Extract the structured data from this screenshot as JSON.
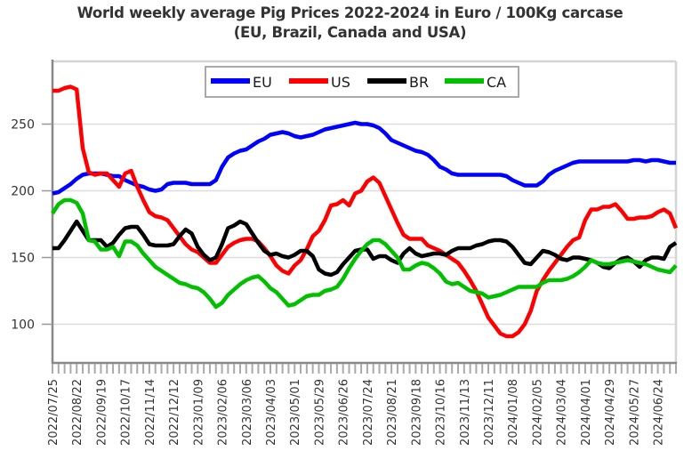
{
  "chart_data": {
    "type": "line",
    "title": "World weekly average Pig Prices 2022-2024 in Euro / 100Kg carcase",
    "subtitle": "(EU, Brazil, Canada and USA)",
    "xlabel": "",
    "ylabel": "",
    "ylim": [
      71,
      297
    ],
    "yticks": [
      100,
      150,
      200,
      250
    ],
    "ytick_labels": [
      "100",
      "150",
      "200",
      "250"
    ],
    "grid": "horizontal",
    "legend_position": "top-center",
    "x": [
      "2022/07/25",
      "2022/08/01",
      "2022/08/08",
      "2022/08/15",
      "2022/08/22",
      "2022/08/29",
      "2022/09/05",
      "2022/09/12",
      "2022/09/19",
      "2022/09/26",
      "2022/10/03",
      "2022/10/10",
      "2022/10/17",
      "2022/10/24",
      "2022/10/31",
      "2022/11/07",
      "2022/11/14",
      "2022/11/21",
      "2022/11/28",
      "2022/12/05",
      "2022/12/12",
      "2022/12/19",
      "2022/12/26",
      "2023/01/02",
      "2023/01/09",
      "2023/01/16",
      "2023/01/23",
      "2023/01/30",
      "2023/02/06",
      "2023/02/13",
      "2023/02/20",
      "2023/02/27",
      "2023/03/06",
      "2023/03/13",
      "2023/03/20",
      "2023/03/27",
      "2023/04/03",
      "2023/04/10",
      "2023/04/17",
      "2023/04/24",
      "2023/05/01",
      "2023/05/08",
      "2023/05/15",
      "2023/05/22",
      "2023/05/29",
      "2023/06/05",
      "2023/06/12",
      "2023/06/19",
      "2023/06/26",
      "2023/07/03",
      "2023/07/10",
      "2023/07/17",
      "2023/07/24",
      "2023/07/31",
      "2023/08/07",
      "2023/08/14",
      "2023/08/21",
      "2023/08/28",
      "2023/09/04",
      "2023/09/11",
      "2023/09/18",
      "2023/09/25",
      "2023/10/02",
      "2023/10/09",
      "2023/10/16",
      "2023/10/23",
      "2023/10/30",
      "2023/11/06",
      "2023/11/13",
      "2023/11/20",
      "2023/11/27",
      "2023/12/04",
      "2023/12/11",
      "2023/12/18",
      "2023/12/25",
      "2024/01/01",
      "2024/01/08",
      "2024/01/15",
      "2024/01/22",
      "2024/01/29",
      "2024/02/05",
      "2024/02/12",
      "2024/02/19",
      "2024/02/26",
      "2024/03/04",
      "2024/03/11",
      "2024/03/18",
      "2024/03/25",
      "2024/04/01",
      "2024/04/08",
      "2024/04/15",
      "2024/04/22",
      "2024/04/29",
      "2024/05/06",
      "2024/05/13",
      "2024/05/20",
      "2024/05/27",
      "2024/06/03",
      "2024/06/10",
      "2024/06/17",
      "2024/06/24",
      "2024/07/01",
      "2024/07/08",
      "2024/07/15"
    ],
    "xtick_labels": [
      "2022/07/25",
      "2022/08/22",
      "2022/09/19",
      "2022/10/17",
      "2022/11/14",
      "2022/12/12",
      "2023/01/09",
      "2023/02/06",
      "2023/03/06",
      "2023/04/03",
      "2023/05/01",
      "2023/05/29",
      "2023/06/26",
      "2023/07/24",
      "2023/08/21",
      "2023/09/18",
      "2023/10/16",
      "2023/11/13",
      "2023/12/11",
      "2024/01/08",
      "2024/02/05",
      "2024/03/04",
      "2024/04/01",
      "2024/04/29",
      "2024/05/27",
      "2024/06/24"
    ],
    "series": [
      {
        "name": "EU",
        "color": "#0000ff",
        "values": [
          198,
          199,
          202,
          205,
          209,
          212,
          213,
          213,
          213,
          212,
          211,
          211,
          208,
          206,
          204,
          203,
          201,
          200,
          201,
          205,
          206,
          206,
          206,
          205,
          205,
          205,
          205,
          208,
          218,
          225,
          228,
          230,
          231,
          234,
          237,
          239,
          242,
          243,
          244,
          243,
          241,
          240,
          241,
          242,
          244,
          246,
          247,
          248,
          249,
          250,
          251,
          250,
          250,
          249,
          247,
          243,
          238,
          236,
          234,
          232,
          230,
          229,
          227,
          223,
          218,
          216,
          213,
          212,
          212,
          212,
          212,
          212,
          212,
          212,
          212,
          211,
          208,
          206,
          204,
          204,
          204,
          207,
          212,
          215,
          217,
          219,
          221,
          222,
          222,
          222,
          222,
          222,
          222,
          222,
          222,
          222,
          223,
          223,
          222,
          223,
          223,
          222,
          221,
          221
        ]
      },
      {
        "name": "US",
        "color": "#ff0000",
        "values": [
          275,
          275,
          277,
          278,
          276,
          232,
          214,
          212,
          213,
          213,
          208,
          203,
          213,
          215,
          203,
          193,
          184,
          181,
          180,
          178,
          172,
          166,
          160,
          156,
          154,
          150,
          146,
          146,
          152,
          158,
          161,
          163,
          164,
          164,
          162,
          157,
          151,
          144,
          140,
          138,
          144,
          148,
          156,
          166,
          170,
          178,
          189,
          190,
          193,
          189,
          198,
          200,
          207,
          210,
          206,
          196,
          186,
          176,
          167,
          164,
          164,
          164,
          159,
          157,
          155,
          152,
          149,
          146,
          140,
          133,
          125,
          115,
          105,
          99,
          93,
          91,
          91,
          94,
          100,
          110,
          125,
          133,
          140,
          146,
          152,
          158,
          163,
          165,
          178,
          186,
          186,
          188,
          188,
          190,
          185,
          179,
          179,
          180,
          180,
          181,
          184,
          186,
          183,
          172
        ]
      },
      {
        "name": "BR",
        "color": "#000000",
        "values": [
          157,
          157,
          163,
          170,
          177,
          170,
          163,
          163,
          163,
          158,
          161,
          167,
          172,
          173,
          173,
          167,
          160,
          159,
          159,
          159,
          160,
          166,
          171,
          168,
          158,
          152,
          148,
          150,
          160,
          172,
          174,
          177,
          175,
          168,
          161,
          155,
          152,
          153,
          151,
          150,
          152,
          155,
          155,
          151,
          141,
          138,
          137,
          139,
          145,
          150,
          155,
          156,
          156,
          149,
          151,
          151,
          148,
          146,
          153,
          157,
          153,
          151,
          152,
          153,
          153,
          152,
          155,
          157,
          157,
          157,
          159,
          160,
          162,
          163,
          163,
          162,
          158,
          152,
          146,
          145,
          150,
          155,
          154,
          152,
          149,
          148,
          150,
          150,
          149,
          148,
          146,
          143,
          142,
          146,
          149,
          150,
          147,
          143,
          148,
          150,
          150,
          149,
          158,
          161
        ]
      },
      {
        "name": "CA",
        "color": "#00c000",
        "values": [
          183,
          190,
          193,
          193,
          191,
          183,
          163,
          162,
          156,
          156,
          158,
          151,
          162,
          162,
          159,
          153,
          148,
          143,
          140,
          137,
          134,
          131,
          130,
          128,
          127,
          124,
          119,
          113,
          116,
          122,
          126,
          130,
          133,
          135,
          136,
          132,
          127,
          124,
          119,
          114,
          115,
          118,
          121,
          122,
          122,
          125,
          126,
          128,
          134,
          142,
          149,
          155,
          160,
          163,
          163,
          160,
          155,
          150,
          141,
          141,
          144,
          146,
          145,
          142,
          138,
          132,
          130,
          131,
          128,
          125,
          124,
          123,
          120,
          121,
          122,
          124,
          126,
          128,
          128,
          128,
          128,
          131,
          133,
          133,
          133,
          134,
          136,
          139,
          143,
          148,
          146,
          145,
          145,
          146,
          147,
          148,
          147,
          146,
          145,
          143,
          141,
          140,
          139,
          144
        ]
      }
    ]
  }
}
